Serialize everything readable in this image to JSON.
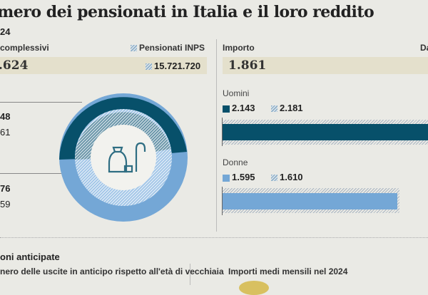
{
  "title": "mero dei pensionati in Italia e il loro reddito",
  "year": "24",
  "left": {
    "label_total": "complessivi",
    "label_inps": "Pensionati INPS",
    "total_value": ".624",
    "inps_value": "15.721.720",
    "men_total": "48",
    "men_inps": "61",
    "women_total": "76",
    "women_inps": "59"
  },
  "right": {
    "label_amount": "Importo",
    "label_da": "Da",
    "amount_value": "1.861",
    "men": {
      "label": "Uomini",
      "total": "2.143",
      "inps": "2.181",
      "fraction": 1.0
    },
    "women": {
      "label": "Donne",
      "total": "1.595",
      "inps": "1.610",
      "fraction": 0.87
    }
  },
  "bottom": {
    "section_title": "oni anticipate",
    "subtitle": "nero delle uscite in anticipo rispetto all'età di vecchiaia",
    "right_title": "Importi medi mensili nel 2024"
  },
  "colors": {
    "men": "#07506a",
    "women": "#74a7d6",
    "highlight": "#e4e0cc"
  }
}
